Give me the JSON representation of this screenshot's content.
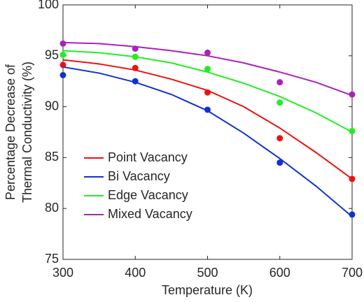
{
  "chart_data": {
    "type": "scatter_fit",
    "xlabel": "Temperature (K)",
    "ylabel": [
      "Percentage Decrease of",
      "Thermal Conductivity (%)"
    ],
    "x": [
      300,
      400,
      500,
      600,
      700
    ],
    "fit_x": [
      300,
      350,
      400,
      450,
      500,
      550,
      600,
      650,
      700
    ],
    "xlim": [
      300,
      700
    ],
    "xticks": [
      300,
      400,
      500,
      600,
      700
    ],
    "ylim": [
      75,
      100
    ],
    "yticks": [
      75,
      80,
      85,
      90,
      95,
      100
    ],
    "legend": "lower left",
    "series": [
      {
        "name": "Point Vacancy",
        "color": "#ee1111",
        "values": [
          94.1,
          93.8,
          91.4,
          86.9,
          82.9
        ],
        "fit": [
          94.6,
          94.2,
          93.6,
          92.7,
          91.6,
          90.0,
          87.9,
          85.5,
          82.9
        ]
      },
      {
        "name": "Bi Vacancy",
        "color": "#1133cc",
        "values": [
          93.1,
          92.5,
          89.7,
          84.5,
          79.4
        ],
        "fit": [
          93.9,
          93.3,
          92.4,
          91.2,
          89.6,
          87.4,
          84.9,
          82.2,
          79.2
        ]
      },
      {
        "name": "Edge Vacancy",
        "color": "#22ee22",
        "values": [
          95.1,
          94.9,
          93.7,
          90.4,
          87.6
        ],
        "fit": [
          95.5,
          95.3,
          94.9,
          94.3,
          93.4,
          92.3,
          91.0,
          89.4,
          87.5
        ]
      },
      {
        "name": "Mixed Vacancy",
        "color": "#aa22bb",
        "values": [
          96.2,
          95.7,
          95.3,
          92.4,
          91.2
        ],
        "fit": [
          96.3,
          96.2,
          95.9,
          95.5,
          95.0,
          94.3,
          93.4,
          92.4,
          91.1
        ]
      }
    ]
  }
}
